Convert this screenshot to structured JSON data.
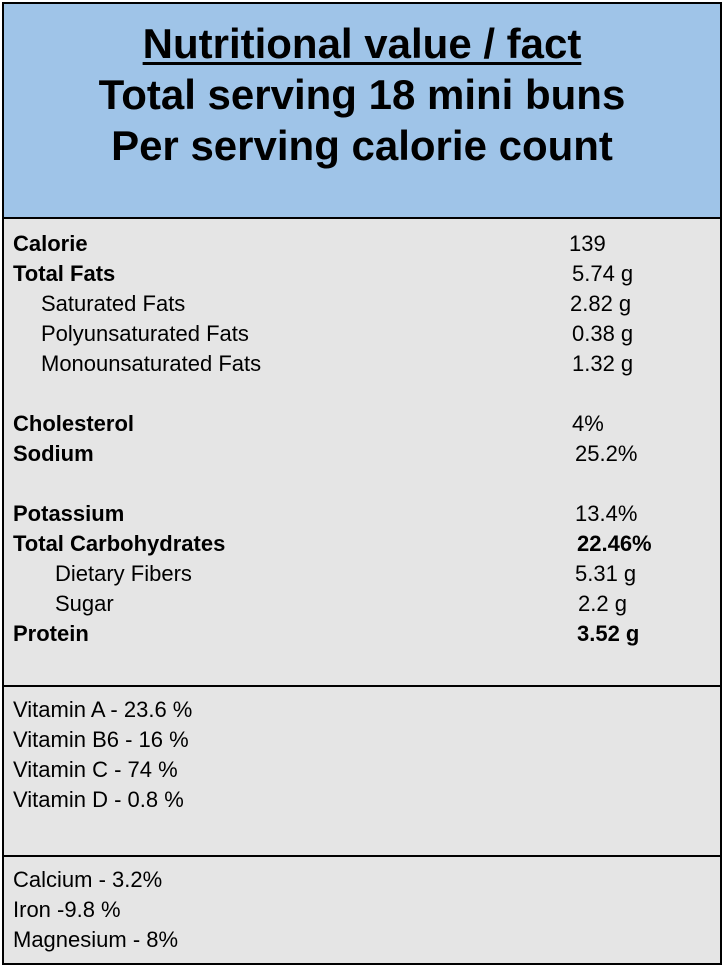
{
  "header": {
    "title": "Nutritional value / fact",
    "line2": "Total serving 18 mini buns",
    "line3": "Per serving calorie count"
  },
  "facts": [
    {
      "label": "Calorie",
      "value": "139"
    },
    {
      "label": "Total Fats",
      "value": "5.74 g"
    },
    {
      "label": "Saturated Fats",
      "value": "2.82 g"
    },
    {
      "label": "Polyunsaturated Fats",
      "value": "0.38 g"
    },
    {
      "label": "Monounsaturated Fats",
      "value": "1.32 g"
    },
    {
      "label": "Cholesterol",
      "value": "4%"
    },
    {
      "label": "Sodium",
      "value": "25.2%"
    },
    {
      "label": "Potassium",
      "value": "13.4%"
    },
    {
      "label": "Total Carbohydrates",
      "value": "22.46%"
    },
    {
      "label": "Dietary Fibers",
      "value": "5.31 g"
    },
    {
      "label": "Sugar",
      "value": "2.2 g"
    },
    {
      "label": "Protein",
      "value": "3.52 g"
    }
  ],
  "vitamins": [
    "Vitamin A - 23.6 %",
    "Vitamin B6 - 16 %",
    "Vitamin C - 74 %",
    "Vitamin D - 0.8 %"
  ],
  "minerals": [
    "Calcium - 3.2%",
    "Iron -9.8 %",
    "Magnesium - 8%"
  ]
}
